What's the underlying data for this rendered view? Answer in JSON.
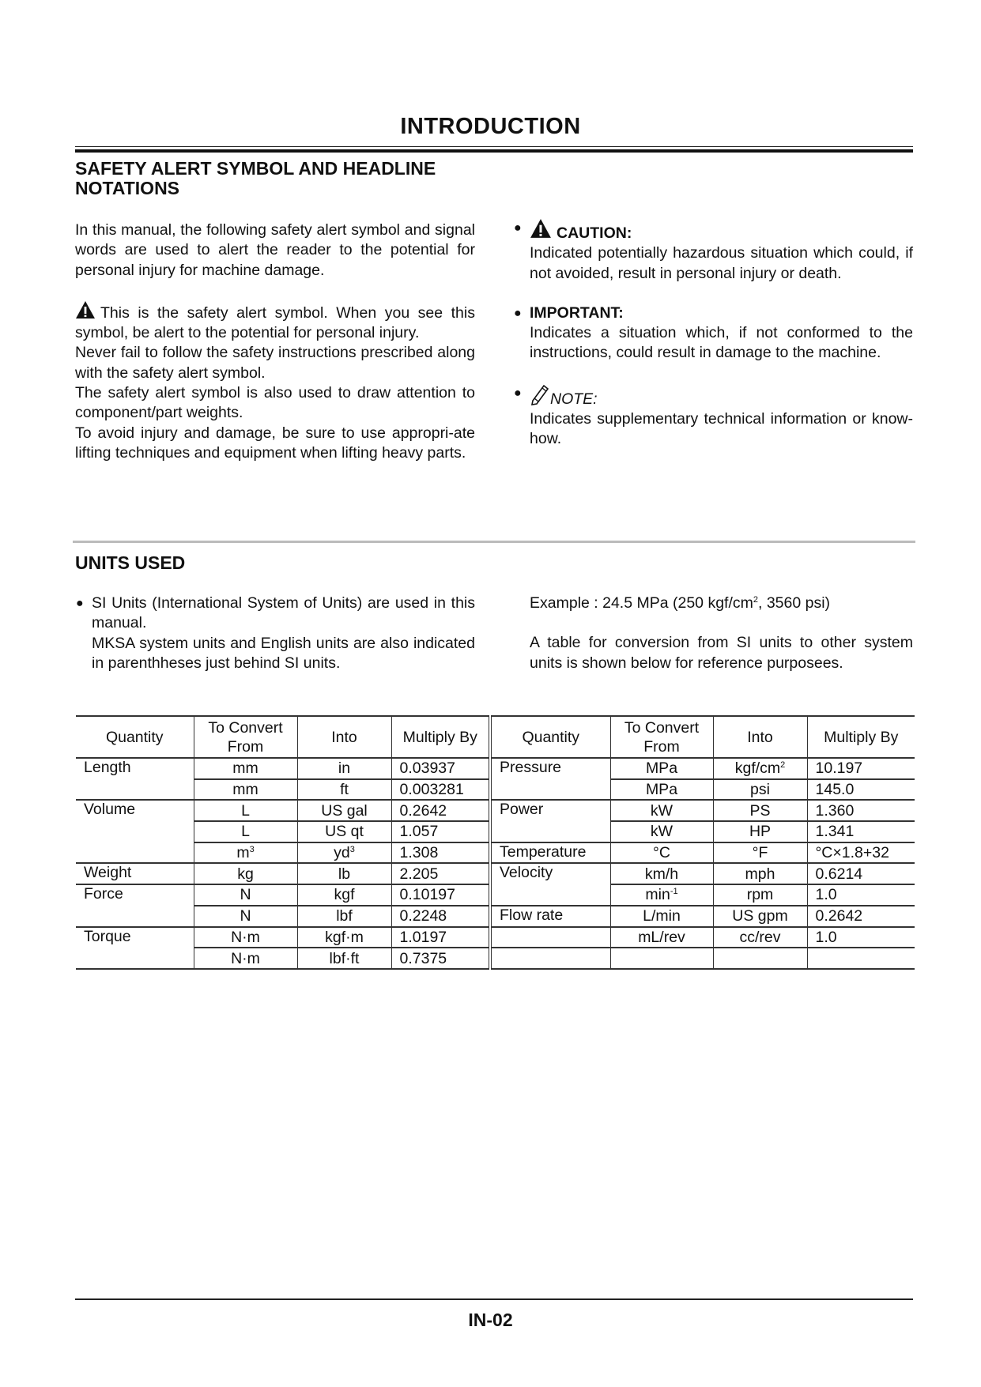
{
  "header": {
    "title": "INTRODUCTION"
  },
  "safety": {
    "heading_line1": "SAFETY ALERT SYMBOL AND HEADLINE",
    "heading_line2": "NOTATIONS",
    "intro": "In this manual, the following safety alert symbol and signal words are used to alert the reader to the potential for personal injury for machine damage.",
    "symbol_text": "This is the safety alert symbol. When you see this symbol, be alert to the potential for personal injury.",
    "para2": "Never fail to follow the safety instructions prescribed along with the safety alert symbol.",
    "para3": "The safety alert symbol is also used to draw attention to component/part weights.",
    "para4": "To avoid injury and damage, be sure to use appropri-ate lifting techniques and equipment when lifting heavy parts.",
    "caution_label": "CAUTION:",
    "caution_text": "Indicated potentially hazardous situation which could, if not avoided, result in personal injury or death.",
    "important_label": "IMPORTANT:",
    "important_text": "Indicates a situation which, if not conformed to the instructions, could result in damage to the machine.",
    "note_label": "NOTE:",
    "note_text": "Indicates supplementary technical information or know-how.",
    "icons": {
      "alert": "warning-triangle-icon",
      "note": "pencil-icon"
    }
  },
  "units": {
    "heading": "UNITS USED",
    "bullet1": "SI Units (International System of Units) are used in this manual.",
    "bullet1b": "MKSA system units and English units are also indicated in parenthheses just behind SI units.",
    "example_pre": "Example : 24.5 MPa (250 kgf/cm",
    "example_sup": "2",
    "example_post": ", 3560 psi)",
    "table_note": "A table for conversion from SI units to other system units is shown below for reference purposees."
  },
  "table": {
    "headers": [
      "Quantity",
      "To Convert From",
      "Into",
      "Multiply By",
      "Quantity",
      "To Convert From",
      "Into",
      "Multiply By"
    ],
    "left": [
      {
        "q": "Length",
        "span": 2,
        "from": "mm",
        "into": "in",
        "mult": "0.03937"
      },
      {
        "from": "mm",
        "into": "ft",
        "mult": "0.003281"
      },
      {
        "q": "Volume",
        "span": 3,
        "from": "L",
        "into": "US gal",
        "mult": "0.2642"
      },
      {
        "from": "L",
        "into": "US qt",
        "mult": "1.057"
      },
      {
        "from": "m",
        "from_sup": "3",
        "into": "yd",
        "into_sup": "3",
        "mult": "1.308"
      },
      {
        "q": "Weight",
        "span": 1,
        "from": "kg",
        "into": "lb",
        "mult": "2.205"
      },
      {
        "q": "Force",
        "span": 2,
        "from": "N",
        "into": "kgf",
        "mult": "0.10197"
      },
      {
        "from": "N",
        "into": "lbf",
        "mult": "0.2248"
      },
      {
        "q": "Torque",
        "span": 2,
        "from": "N·m",
        "into": "kgf·m",
        "mult": "1.0197"
      },
      {
        "from": "N·m",
        "into": "lbf·ft",
        "mult": "0.7375"
      }
    ],
    "right": [
      {
        "q": "Pressure",
        "span": 2,
        "from": "MPa",
        "into": "kgf/cm",
        "into_sup": "2",
        "mult": "10.197"
      },
      {
        "from": "MPa",
        "into": "psi",
        "mult": "145.0"
      },
      {
        "q": "Power",
        "span": 2,
        "from": "kW",
        "into": "PS",
        "mult": "1.360"
      },
      {
        "from": "kW",
        "into": "HP",
        "mult": "1.341"
      },
      {
        "q": "Temperature",
        "span": 1,
        "from": "°C",
        "into": "°F",
        "mult": "°C×1.8+32"
      },
      {
        "q": "Velocity",
        "span": 2,
        "from": "km/h",
        "into": "mph",
        "mult": "0.6214"
      },
      {
        "from": "min",
        "from_sup": "-1",
        "into": "rpm",
        "mult": "1.0"
      },
      {
        "q": "Flow rate",
        "span": 1,
        "from": "L/min",
        "into": "US gpm",
        "mult": "0.2642"
      },
      {
        "q": "",
        "span": 1,
        "from": "mL/rev",
        "into": "cc/rev",
        "mult": "1.0"
      },
      {
        "q": "",
        "span": 1,
        "from": "",
        "into": "",
        "mult": ""
      }
    ]
  },
  "footer": {
    "page": "IN-02"
  }
}
